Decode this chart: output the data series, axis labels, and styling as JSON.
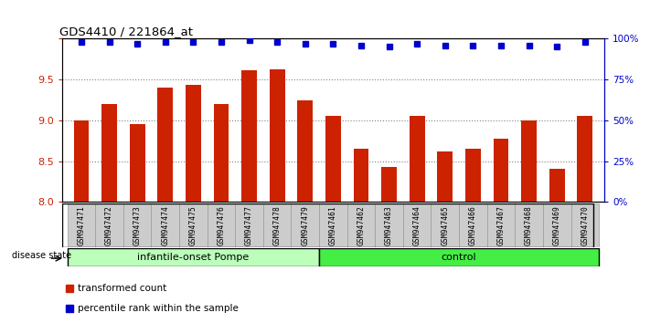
{
  "title": "GDS4410 / 221864_at",
  "samples": [
    "GSM947471",
    "GSM947472",
    "GSM947473",
    "GSM947474",
    "GSM947475",
    "GSM947476",
    "GSM947477",
    "GSM947478",
    "GSM947479",
    "GSM947461",
    "GSM947462",
    "GSM947463",
    "GSM947464",
    "GSM947465",
    "GSM947466",
    "GSM947467",
    "GSM947468",
    "GSM947469",
    "GSM947470"
  ],
  "bar_values": [
    9.0,
    9.2,
    8.95,
    9.4,
    9.43,
    9.2,
    9.61,
    9.62,
    9.25,
    9.05,
    8.65,
    8.43,
    9.05,
    8.62,
    8.65,
    8.78,
    9.0,
    8.4,
    9.05
  ],
  "percentile_values": [
    98,
    98,
    97,
    98,
    98,
    98,
    99,
    98,
    97,
    97,
    96,
    95,
    97,
    96,
    96,
    96,
    96,
    95,
    98
  ],
  "bar_color": "#cc2200",
  "dot_color": "#0000cc",
  "ylim_left": [
    8.0,
    10.0
  ],
  "ylim_right": [
    0,
    100
  ],
  "yticks_left": [
    8.0,
    8.5,
    9.0,
    9.5,
    10.0
  ],
  "yticks_right": [
    0,
    25,
    50,
    75,
    100
  ],
  "ytick_labels_right": [
    "0%",
    "25%",
    "50%",
    "75%",
    "100%"
  ],
  "group1_label": "infantile-onset Pompe",
  "group2_label": "control",
  "group1_count": 9,
  "group2_count": 10,
  "disease_state_label": "disease state",
  "legend_bar_label": "transformed count",
  "legend_dot_label": "percentile rank within the sample",
  "group1_color": "#bbffbb",
  "group2_color": "#44ee44",
  "tick_bg_color": "#cccccc",
  "bar_bottom": 8.0,
  "fig_width": 7.11,
  "fig_height": 3.54,
  "dpi": 100
}
